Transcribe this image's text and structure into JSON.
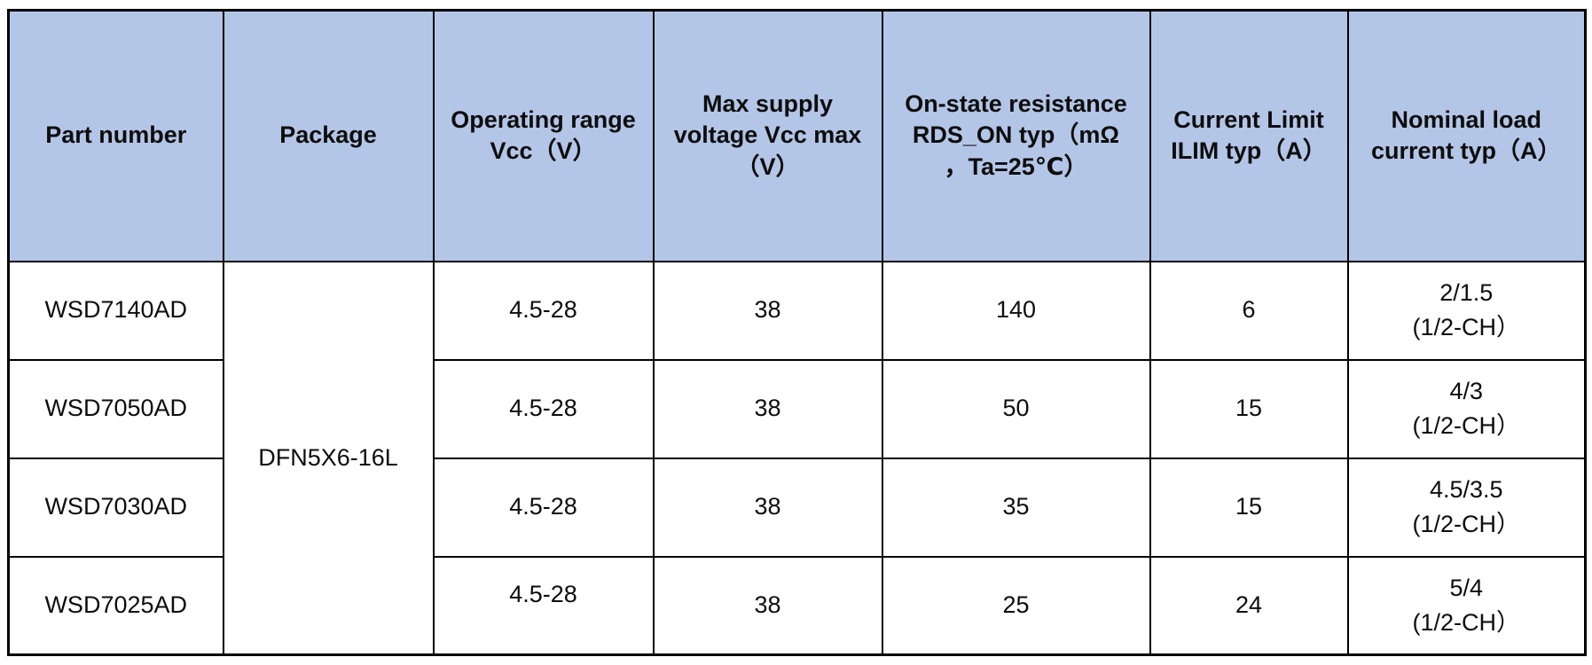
{
  "table": {
    "headers": {
      "part_number": "Part number",
      "package": "Package",
      "vcc_range": "Operating range\nVcc（V）",
      "vcc_max": "Max supply\nvoltage Vcc max\n（V）",
      "rds_on": "On-state resistance\nRDS_ON typ（mΩ\n，Ta=25℃）",
      "ilim": "Current Limit\nILIM typ（A）",
      "load_current": "Nominal load\ncurrent typ（A）"
    },
    "package_value": "DFN5X6-16L",
    "rows": [
      {
        "part_number": "WSD7140AD",
        "vcc_range": "4.5-28",
        "vcc_max": "38",
        "rds_on": "140",
        "ilim": "6",
        "load_current": "2/1.5\n(1/2-CH）"
      },
      {
        "part_number": "WSD7050AD",
        "vcc_range": "4.5-28",
        "vcc_max": "38",
        "rds_on": "50",
        "ilim": "15",
        "load_current": "4/3\n(1/2-CH）"
      },
      {
        "part_number": "WSD7030AD",
        "vcc_range": "4.5-28",
        "vcc_max": "38",
        "rds_on": "35",
        "ilim": "15",
        "load_current": "4.5/3.5\n(1/2-CH）"
      },
      {
        "part_number": "WSD7025AD",
        "vcc_range": "4.5-28",
        "vcc_max": "38",
        "rds_on": "25",
        "ilim": "24",
        "load_current": "5/4\n(1/2-CH）"
      }
    ]
  },
  "colors": {
    "header_bg": "#b4c6e7",
    "border": "#000000",
    "text": "#0d0d0d"
  }
}
